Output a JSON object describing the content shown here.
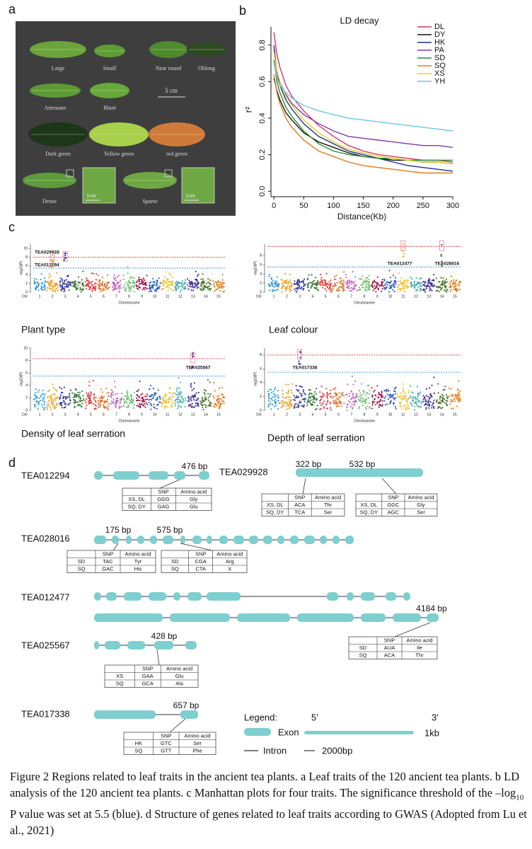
{
  "panel_labels": [
    "a",
    "b",
    "c",
    "d"
  ],
  "leaf_traits": {
    "labels": [
      "Large",
      "Small",
      "Near round",
      "Oblong",
      "Attenuate",
      "Blunt",
      "Dark green",
      "Yellow green",
      "red green",
      "Dense",
      "Sparse"
    ],
    "scale_bar": "5 cm",
    "inset_scale": [
      "1cm",
      "1cm"
    ]
  },
  "chart_data": {
    "type": "line",
    "title": "LD decay",
    "xlabel": "Distance(Kb)",
    "ylabel": "r²",
    "x": [
      0,
      5,
      10,
      20,
      30,
      50,
      75,
      100,
      125,
      150,
      175,
      200,
      225,
      250,
      275,
      300
    ],
    "xlim": [
      -5,
      300
    ],
    "ylim": [
      -0.03,
      0.9
    ],
    "xticks": [
      0,
      50,
      100,
      150,
      200,
      250,
      300
    ],
    "yticks": [
      {
        "value": 0,
        "label": "0.0"
      },
      {
        "value": 0.2,
        "label": "0.2"
      },
      {
        "value": 0.4,
        "label": "0.4"
      },
      {
        "value": 0.6,
        "label": "0.6"
      },
      {
        "value": 0.8,
        "label": "0.8"
      }
    ],
    "legend": "upper right",
    "series": [
      {
        "name": "DL",
        "color": "#d6336c",
        "values": [
          0.87,
          0.75,
          0.68,
          0.58,
          0.52,
          0.44,
          0.36,
          0.3,
          0.25,
          0.22,
          0.2,
          0.19,
          0.18,
          0.17,
          0.17,
          0.16
        ]
      },
      {
        "name": "DY",
        "color": "#111111",
        "values": [
          0.62,
          0.55,
          0.5,
          0.43,
          0.39,
          0.32,
          0.27,
          0.24,
          0.21,
          0.19,
          0.18,
          0.17,
          0.17,
          0.16,
          0.16,
          0.15
        ]
      },
      {
        "name": "HK",
        "color": "#1f2f8f",
        "values": [
          0.8,
          0.65,
          0.58,
          0.5,
          0.45,
          0.37,
          0.3,
          0.26,
          0.22,
          0.2,
          0.18,
          0.16,
          0.14,
          0.13,
          0.12,
          0.11
        ]
      },
      {
        "name": "PA",
        "color": "#7b3fa0",
        "values": [
          0.78,
          0.65,
          0.6,
          0.53,
          0.48,
          0.42,
          0.37,
          0.33,
          0.3,
          0.29,
          0.28,
          0.27,
          0.26,
          0.25,
          0.25,
          0.24
        ]
      },
      {
        "name": "SD",
        "color": "#2e8b3a",
        "values": [
          0.72,
          0.6,
          0.54,
          0.46,
          0.41,
          0.33,
          0.26,
          0.22,
          0.2,
          0.19,
          0.18,
          0.18,
          0.17,
          0.17,
          0.17,
          0.17
        ]
      },
      {
        "name": "SQ",
        "color": "#e07b20",
        "values": [
          0.64,
          0.54,
          0.48,
          0.4,
          0.35,
          0.28,
          0.22,
          0.19,
          0.16,
          0.14,
          0.13,
          0.12,
          0.11,
          0.1,
          0.1,
          0.1
        ]
      },
      {
        "name": "XS",
        "color": "#e3d21c",
        "values": [
          0.76,
          0.66,
          0.6,
          0.52,
          0.47,
          0.39,
          0.32,
          0.27,
          0.23,
          0.21,
          0.19,
          0.18,
          0.17,
          0.16,
          0.16,
          0.15
        ]
      },
      {
        "name": "YH",
        "color": "#6ec6e8",
        "values": [
          0.7,
          0.62,
          0.58,
          0.54,
          0.51,
          0.47,
          0.44,
          0.42,
          0.4,
          0.39,
          0.38,
          0.37,
          0.36,
          0.35,
          0.34,
          0.33
        ]
      }
    ]
  },
  "manhattan": [
    {
      "trait": "Plant type",
      "xlabel": "Chromosome",
      "ylabel": "-log10(P)",
      "chr_label": "Chr",
      "chromosomes": [
        1,
        2,
        3,
        4,
        5,
        6,
        7,
        8,
        9,
        10,
        11,
        12,
        13,
        14,
        15
      ],
      "ylim": [
        0,
        11
      ],
      "yticks": [
        0,
        2,
        4,
        6,
        8,
        10
      ],
      "threshold_red": 8,
      "threshold_blue": 5.5,
      "genes": [
        {
          "label": "TEA029928",
          "chromosome": 3
        },
        {
          "label": "TEA012294",
          "chromosome": 2
        }
      ]
    },
    {
      "trait": "Leaf colour",
      "xlabel": "Chromosome",
      "ylabel": "-log10(P)",
      "chr_label": "Chr",
      "chromosomes": [
        1,
        2,
        3,
        4,
        5,
        6,
        7,
        8,
        9,
        10,
        11,
        12,
        13,
        14,
        15
      ],
      "ylim": [
        0,
        10.5
      ],
      "yticks": [
        0,
        2,
        4,
        6,
        8
      ],
      "threshold_red": 10,
      "threshold_blue": 5.5,
      "genes": [
        {
          "label": "TEA012477",
          "chromosome": 11
        },
        {
          "label": "TEA028016",
          "chromosome": 14
        }
      ]
    },
    {
      "trait": "Density of leaf serration",
      "xlabel": "Chromosome",
      "ylabel": "-log10(P)",
      "chr_label": "Chr",
      "chromosomes": [
        1,
        2,
        3,
        4,
        5,
        6,
        7,
        8,
        9,
        10,
        11,
        12,
        13,
        14,
        15
      ],
      "ylim": [
        0,
        10
      ],
      "yticks": [
        0,
        2,
        4,
        6,
        8,
        10
      ],
      "threshold_red": 8.3,
      "threshold_blue": 5.5,
      "genes": [
        {
          "label": "TEA025567",
          "chromosome": 13
        }
      ]
    },
    {
      "trait": "Depth of leaf serration",
      "xlabel": "Chromosome",
      "ylabel": "-log10(P)",
      "chr_label": "Chr",
      "chromosomes": [
        1,
        2,
        3,
        4,
        5,
        6,
        7,
        8,
        9,
        10,
        11,
        12,
        13,
        14,
        15
      ],
      "ylim": [
        0,
        9
      ],
      "yticks": [
        0,
        2,
        4,
        6,
        8
      ],
      "threshold_red": 8,
      "threshold_blue": 5.5,
      "genes": [
        {
          "label": "TEA017338",
          "chromosome": 3
        }
      ]
    }
  ],
  "genes": [
    {
      "name": "TEA012294",
      "snps": [
        {
          "position": "476 bp",
          "header": [
            "SNP",
            "Amino acid"
          ],
          "rows": [
            [
              "XS, DL",
              "GGG",
              "Gly"
            ],
            [
              "SQ, DY",
              "GAG",
              "Glu"
            ]
          ]
        }
      ]
    },
    {
      "name": "TEA029928",
      "snps": [
        {
          "position": "322 bp",
          "header": [
            "SNP",
            "Amino acid"
          ],
          "rows": [
            [
              "XS, DL",
              "ACA",
              "Thr"
            ],
            [
              "SQ, DY",
              "TCA",
              "Ser"
            ]
          ]
        },
        {
          "position": "532 bp",
          "header": [
            "SNP",
            "Amino acid"
          ],
          "rows": [
            [
              "XS, DL",
              "GGC",
              "Gly"
            ],
            [
              "SQ, DY",
              "AGC",
              "Ser"
            ]
          ]
        }
      ]
    },
    {
      "name": "TEA028016",
      "snps": [
        {
          "position": "175 bp",
          "header": [
            "SNP",
            "Amino acid"
          ],
          "rows": [
            [
              "SD",
              "TAC",
              "Tyr"
            ],
            [
              "SQ",
              "GAC",
              "His"
            ]
          ]
        },
        {
          "position": "575 bp",
          "header": [
            "SNP",
            "Amino acid"
          ],
          "rows": [
            [
              "SD",
              "CGA",
              "Arg"
            ],
            [
              "SQ",
              "CTA",
              "X"
            ]
          ]
        }
      ]
    },
    {
      "name": "TEA012477",
      "snps": [
        {
          "position": "4184 bp",
          "header": [
            "SNP",
            "Amino acid"
          ],
          "rows": [
            [
              "SD",
              "AUA",
              "Ile"
            ],
            [
              "SQ",
              "ACA",
              "Thr"
            ]
          ]
        }
      ]
    },
    {
      "name": "TEA025567",
      "snps": [
        {
          "position": "428 bp",
          "header": [
            "SNP",
            "Amino acid"
          ],
          "rows": [
            [
              "XS",
              "GAA",
              "Glu"
            ],
            [
              "SQ",
              "GCA",
              "Ala"
            ]
          ]
        }
      ]
    },
    {
      "name": "TEA017338",
      "snps": [
        {
          "position": "657 bp",
          "header": [
            "SNP",
            "Amino acid"
          ],
          "rows": [
            [
              "HK",
              "GTC",
              "Ser"
            ],
            [
              "SQ",
              "GTT",
              "Phe"
            ]
          ]
        }
      ]
    }
  ],
  "gene_legend": {
    "title": "Legend:",
    "five_prime": "5'",
    "three_prime": "3'",
    "exon": "Exon",
    "exon_scale": "1kb",
    "intron": "Intron",
    "intron_scale": "2000bp"
  },
  "caption": {
    "before": "Figure 2 Regions related to leaf traits in the ancient tea plants. a Leaf traits of the 120 ancient tea plants. b LD analysis of the 120 ancient tea plants. c Manhattan plots for four traits. The significance threshold of the –log",
    "subscript": "10",
    "after": " P value was set at 5.5 (blue). d Structure of genes related to leaf traits according to GWAS (Adopted from Lu et al., 2021)"
  }
}
